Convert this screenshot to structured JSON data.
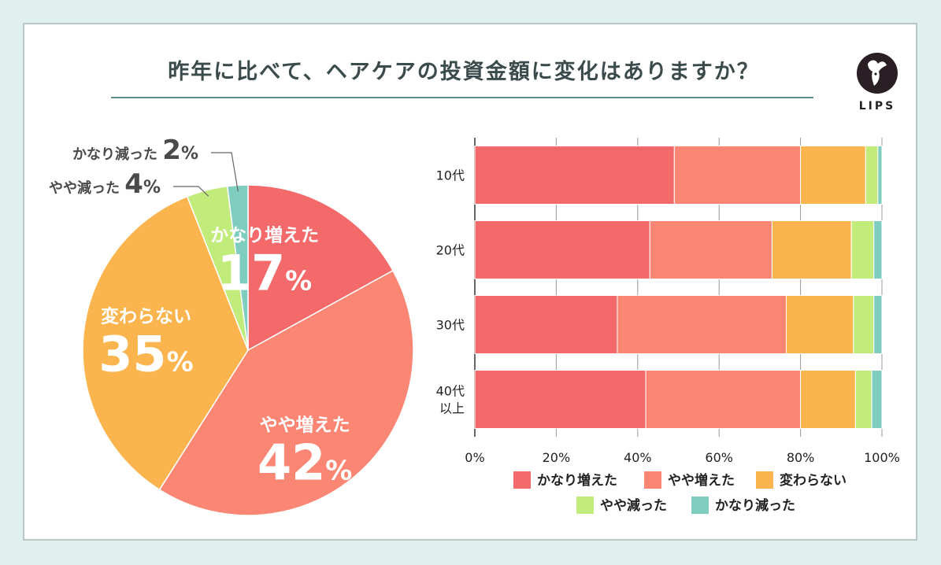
{
  "title": "昨年に比べて、ヘアケアの投資金額に変化はありますか？",
  "logo": {
    "text": "LIPS"
  },
  "colors": {
    "kanari_fueta": "#f4696a",
    "yaya_fueta": "#fb8673",
    "kawaranai": "#fbb44e",
    "yaya_hetta": "#c1ec7b",
    "kanari_hetta": "#7fcdbf"
  },
  "chart_data": [
    {
      "type": "pie",
      "categories": [
        "かなり増えた",
        "やや増えた",
        "変わらない",
        "やや減った",
        "かなり減った"
      ],
      "values": [
        17,
        42,
        35,
        4,
        2
      ],
      "value_suffix": "%"
    },
    {
      "type": "bar",
      "orientation": "horizontal",
      "stacked": true,
      "categories": [
        "10代",
        "20代",
        "30代",
        "40代\n以上"
      ],
      "series": [
        {
          "name": "かなり増えた",
          "values": [
            49,
            43,
            35,
            42
          ]
        },
        {
          "name": "やや増えた",
          "values": [
            31,
            30,
            41.5,
            38
          ]
        },
        {
          "name": "変わらない",
          "values": [
            16,
            19.5,
            16.5,
            13.5
          ]
        },
        {
          "name": "やや減った",
          "values": [
            3,
            5.5,
            5,
            4
          ]
        },
        {
          "name": "かなり減った",
          "values": [
            1,
            2,
            2,
            2.5
          ]
        }
      ],
      "xlim": [
        0,
        100
      ],
      "xticks": [
        "0%",
        "20%",
        "40%",
        "60%",
        "80%",
        "100%"
      ],
      "grid": true,
      "legend": "bottom"
    }
  ]
}
